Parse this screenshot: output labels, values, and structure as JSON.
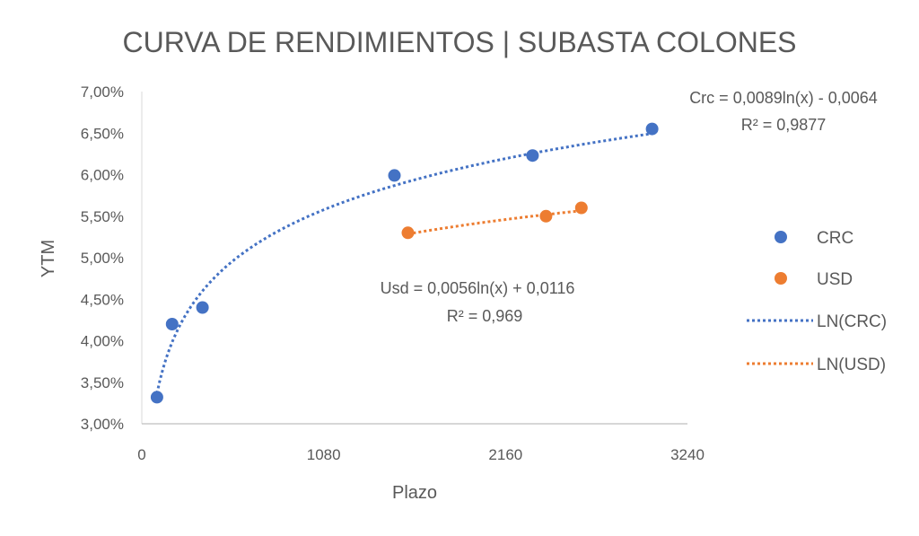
{
  "chart_data": {
    "type": "scatter",
    "title": "CURVA DE RENDIMIENTOS | SUBASTA COLONES",
    "xlabel": "Plazo",
    "ylabel": "YTM",
    "xlim": [
      0,
      3240
    ],
    "ylim": [
      0.03,
      0.07
    ],
    "x_ticks": [
      "0",
      "1080",
      "2160",
      "3240"
    ],
    "y_ticks": [
      "3,00%",
      "3,50%",
      "4,00%",
      "4,50%",
      "5,00%",
      "5,50%",
      "6,00%",
      "6,50%",
      "7,00%"
    ],
    "grid": false,
    "legend": "right",
    "series": [
      {
        "name": "CRC",
        "color": "#4472C4",
        "x": [
          90,
          180,
          360,
          1500,
          2320,
          3030
        ],
        "y": [
          0.0332,
          0.042,
          0.044,
          0.0599,
          0.0623,
          0.0655
        ]
      },
      {
        "name": "USD",
        "color": "#ED7D31",
        "x": [
          1580,
          2400,
          2610
        ],
        "y": [
          0.053,
          0.055,
          0.056
        ]
      }
    ],
    "trendlines": [
      {
        "name": "LN(CRC)",
        "series": "CRC",
        "type": "log",
        "a": 0.0089,
        "b": -0.0064,
        "x_range": [
          90,
          3030
        ],
        "color": "#4472C4",
        "equation": "Crc = 0,0089ln(x) - 0,0064",
        "r2": "R² = 0,9877"
      },
      {
        "name": "LN(USD)",
        "series": "USD",
        "type": "log",
        "a": 0.0056,
        "b": 0.0116,
        "x_range": [
          1580,
          2610
        ],
        "color": "#ED7D31",
        "equation": "Usd = 0,0056ln(x) + 0,0116",
        "r2": "R² = 0,969"
      }
    ]
  }
}
